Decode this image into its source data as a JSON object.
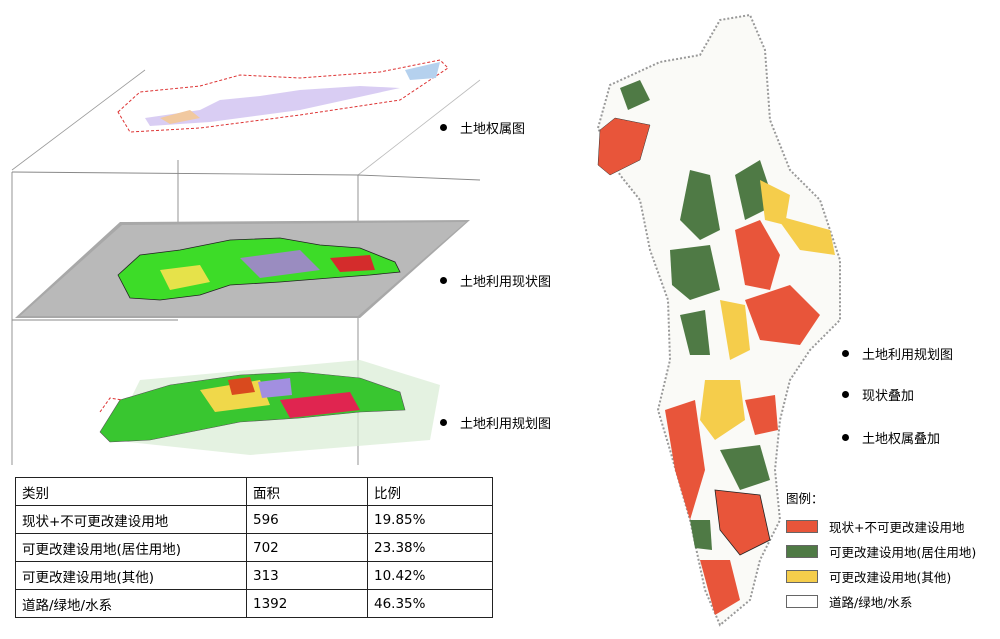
{
  "layers": [
    {
      "label": "土地权属图",
      "icon": "bullet"
    },
    {
      "label": "土地利用现状图",
      "icon": "bullet"
    },
    {
      "label": "土地利用规划图",
      "icon": "bullet"
    }
  ],
  "right_labels": [
    {
      "label": "土地利用规划图"
    },
    {
      "label": "现状叠加"
    },
    {
      "label": "土地权属叠加"
    }
  ],
  "table": {
    "headers": [
      "类别",
      "面积",
      "比例"
    ],
    "rows": [
      [
        "现状+不可更改建设用地",
        "596",
        "19.85%"
      ],
      [
        "可更改建设用地(居住用地)",
        "702",
        "23.38%"
      ],
      [
        "可更改建设用地(其他)",
        "313",
        "10.42%"
      ],
      [
        "道路/绿地/水系",
        "1392",
        "46.35%"
      ]
    ]
  },
  "legend": {
    "title": "图例：",
    "items": [
      {
        "label": "现状+不可更改建设用地",
        "color": "#e8553a"
      },
      {
        "label": "可更改建设用地(居住用地)",
        "color": "#4f7a45"
      },
      {
        "label": "可更改建设用地(其他)",
        "color": "#f5cd4b"
      },
      {
        "label": "道路/绿地/水系",
        "color": "#ffffff"
      }
    ]
  }
}
